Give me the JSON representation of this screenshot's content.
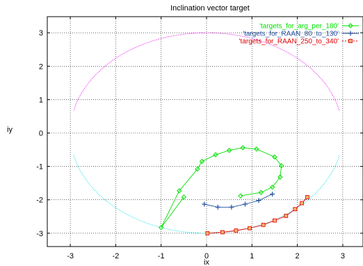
{
  "chart_data": {
    "type": "scatter",
    "title": "Inclination vector target",
    "xlabel": "ix",
    "ylabel": "iy",
    "xlim": [
      -3.5,
      3.5
    ],
    "ylim": [
      -3.3,
      3.3
    ],
    "grid": true,
    "legend_position": "top-right",
    "x_ticks": [
      "-3",
      "-2",
      "-1",
      "0",
      "1",
      "2",
      "3"
    ],
    "y_ticks": [
      "3",
      "2",
      "1",
      "0",
      "-1",
      "-2",
      "-3"
    ],
    "series": [
      {
        "name": "'targets_for_arg_per_180'",
        "color": "#00e000",
        "marker": "diamond",
        "x": [
          -0.5,
          -1.0,
          -0.6,
          -0.2,
          -0.1,
          0.2,
          0.5,
          0.8,
          1.1,
          1.5,
          1.65,
          1.62,
          1.45,
          1.2,
          0.75
        ],
        "y": [
          -1.92,
          -2.83,
          -1.73,
          -1.08,
          -0.85,
          -0.65,
          -0.52,
          -0.44,
          -0.48,
          -0.72,
          -0.98,
          -1.32,
          -1.62,
          -1.78,
          -1.88
        ]
      },
      {
        "name": "'targets_for_RAAN_80_to_130'",
        "color": "#1f4fa0",
        "marker": "plus",
        "x": [
          -0.05,
          0.25,
          0.55,
          0.85,
          1.15,
          1.45
        ],
        "y": [
          -2.13,
          -2.22,
          -2.22,
          -2.13,
          -2.02,
          -1.83
        ]
      },
      {
        "name": "'targets_for_RAAN_250_to_340'",
        "color": "#e00000",
        "marker": "square",
        "x": [
          0.02,
          0.35,
          0.65,
          0.95,
          1.25,
          1.5,
          1.75,
          1.95,
          2.1,
          2.22
        ],
        "y": [
          -3.0,
          -2.97,
          -2.92,
          -2.85,
          -2.75,
          -2.62,
          -2.48,
          -2.28,
          -2.1,
          -1.92
        ]
      }
    ]
  }
}
